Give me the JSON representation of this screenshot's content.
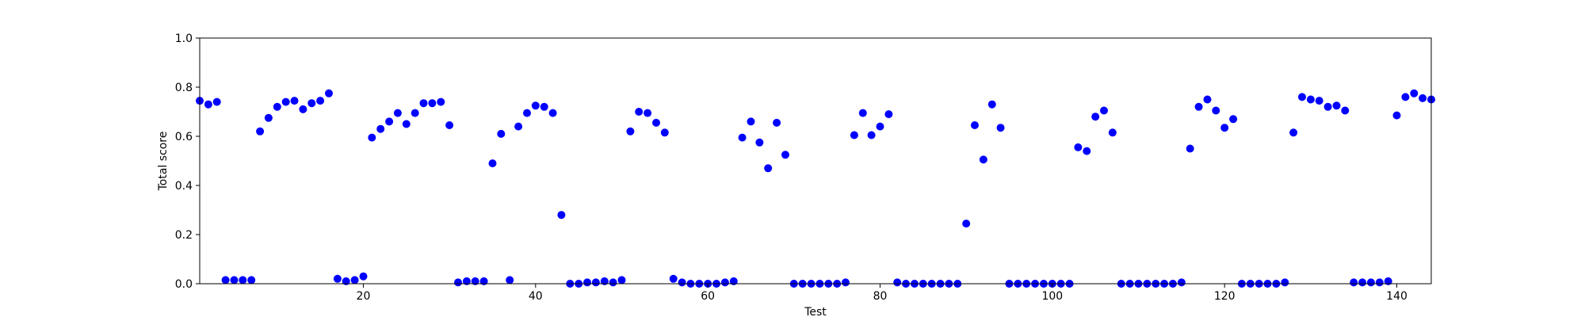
{
  "chart_data": {
    "type": "scatter",
    "xlabel": "Test",
    "ylabel": "Total score",
    "xlim": [
      1,
      144
    ],
    "ylim": [
      0,
      1.0
    ],
    "xticks": [
      20,
      40,
      60,
      80,
      100,
      120,
      140
    ],
    "yticks": [
      0.0,
      0.2,
      0.4,
      0.6,
      0.8,
      1.0
    ],
    "xtick_labels": [
      "20",
      "40",
      "60",
      "80",
      "100",
      "120",
      "140"
    ],
    "ytick_labels": [
      "0.0",
      "0.2",
      "0.4",
      "0.6",
      "0.8",
      "1.0"
    ],
    "grid": false,
    "marker_color": "#0000ff",
    "series": [
      {
        "points": [
          [
            1,
            0.745
          ],
          [
            2,
            0.73
          ],
          [
            3,
            0.74
          ],
          [
            4,
            0.015
          ],
          [
            5,
            0.015
          ],
          [
            6,
            0.015
          ],
          [
            7,
            0.015
          ],
          [
            8,
            0.62
          ],
          [
            9,
            0.675
          ],
          [
            10,
            0.72
          ],
          [
            11,
            0.74
          ],
          [
            12,
            0.745
          ],
          [
            13,
            0.71
          ],
          [
            14,
            0.735
          ],
          [
            15,
            0.745
          ],
          [
            16,
            0.775
          ],
          [
            17,
            0.02
          ],
          [
            18,
            0.01
          ],
          [
            19,
            0.015
          ],
          [
            20,
            0.03
          ],
          [
            21,
            0.595
          ],
          [
            22,
            0.63
          ],
          [
            23,
            0.66
          ],
          [
            24,
            0.695
          ],
          [
            25,
            0.65
          ],
          [
            26,
            0.695
          ],
          [
            27,
            0.735
          ],
          [
            28,
            0.735
          ],
          [
            29,
            0.74
          ],
          [
            30,
            0.645
          ],
          [
            31,
            0.005
          ],
          [
            32,
            0.01
          ],
          [
            33,
            0.01
          ],
          [
            34,
            0.01
          ],
          [
            35,
            0.49
          ],
          [
            36,
            0.61
          ],
          [
            37,
            0.015
          ],
          [
            38,
            0.64
          ],
          [
            39,
            0.695
          ],
          [
            40,
            0.725
          ],
          [
            41,
            0.72
          ],
          [
            42,
            0.695
          ],
          [
            43,
            0.28
          ],
          [
            44,
            0.0
          ],
          [
            45,
            0.0
          ],
          [
            46,
            0.005
          ],
          [
            47,
            0.005
          ],
          [
            48,
            0.01
          ],
          [
            49,
            0.005
          ],
          [
            50,
            0.015
          ],
          [
            51,
            0.62
          ],
          [
            52,
            0.7
          ],
          [
            53,
            0.695
          ],
          [
            54,
            0.655
          ],
          [
            55,
            0.615
          ],
          [
            56,
            0.02
          ],
          [
            57,
            0.005
          ],
          [
            58,
            0.0
          ],
          [
            59,
            0.0
          ],
          [
            60,
            0.0
          ],
          [
            61,
            0.0
          ],
          [
            62,
            0.005
          ],
          [
            63,
            0.01
          ],
          [
            64,
            0.595
          ],
          [
            65,
            0.66
          ],
          [
            66,
            0.575
          ],
          [
            67,
            0.47
          ],
          [
            68,
            0.655
          ],
          [
            69,
            0.525
          ],
          [
            70,
            0.0
          ],
          [
            71,
            0.0
          ],
          [
            72,
            0.0
          ],
          [
            73,
            0.0
          ],
          [
            74,
            0.0
          ],
          [
            75,
            0.0
          ],
          [
            76,
            0.005
          ],
          [
            77,
            0.605
          ],
          [
            78,
            0.695
          ],
          [
            79,
            0.605
          ],
          [
            80,
            0.64
          ],
          [
            81,
            0.69
          ],
          [
            82,
            0.005
          ],
          [
            83,
            0.0
          ],
          [
            84,
            0.0
          ],
          [
            85,
            0.0
          ],
          [
            86,
            0.0
          ],
          [
            87,
            0.0
          ],
          [
            88,
            0.0
          ],
          [
            89,
            0.0
          ],
          [
            90,
            0.245
          ],
          [
            91,
            0.645
          ],
          [
            92,
            0.505
          ],
          [
            93,
            0.73
          ],
          [
            94,
            0.635
          ],
          [
            95,
            0.0
          ],
          [
            96,
            0.0
          ],
          [
            97,
            0.0
          ],
          [
            98,
            0.0
          ],
          [
            99,
            0.0
          ],
          [
            100,
            0.0
          ],
          [
            101,
            0.0
          ],
          [
            102,
            0.0
          ],
          [
            103,
            0.555
          ],
          [
            104,
            0.54
          ],
          [
            105,
            0.68
          ],
          [
            106,
            0.705
          ],
          [
            107,
            0.615
          ],
          [
            108,
            0.0
          ],
          [
            109,
            0.0
          ],
          [
            110,
            0.0
          ],
          [
            111,
            0.0
          ],
          [
            112,
            0.0
          ],
          [
            113,
            0.0
          ],
          [
            114,
            0.0
          ],
          [
            115,
            0.005
          ],
          [
            116,
            0.55
          ],
          [
            117,
            0.72
          ],
          [
            118,
            0.75
          ],
          [
            119,
            0.705
          ],
          [
            120,
            0.635
          ],
          [
            121,
            0.67
          ],
          [
            122,
            0.0
          ],
          [
            123,
            0.0
          ],
          [
            124,
            0.0
          ],
          [
            125,
            0.0
          ],
          [
            126,
            0.0
          ],
          [
            127,
            0.005
          ],
          [
            128,
            0.615
          ],
          [
            129,
            0.76
          ],
          [
            130,
            0.75
          ],
          [
            131,
            0.745
          ],
          [
            132,
            0.72
          ],
          [
            133,
            0.725
          ],
          [
            134,
            0.705
          ],
          [
            135,
            0.005
          ],
          [
            136,
            0.005
          ],
          [
            137,
            0.005
          ],
          [
            138,
            0.005
          ],
          [
            139,
            0.01
          ],
          [
            140,
            0.685
          ],
          [
            141,
            0.76
          ],
          [
            142,
            0.775
          ],
          [
            143,
            0.755
          ],
          [
            144,
            0.75
          ]
        ]
      }
    ]
  }
}
